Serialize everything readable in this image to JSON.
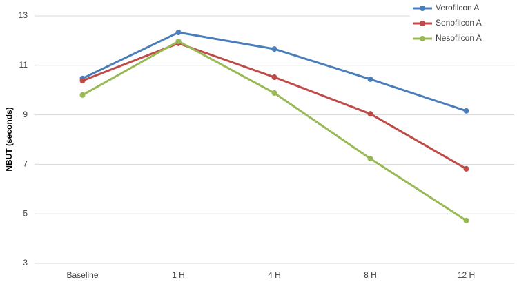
{
  "chart_data": {
    "type": "line",
    "y_label": "NBUT (seconds)",
    "categories": [
      "Baseline",
      "1 H",
      "4 H",
      "8 H",
      "12 H"
    ],
    "series": [
      {
        "name": "Verofilcon A",
        "color": "#4a7ebb",
        "values": [
          10.47,
          12.33,
          11.66,
          10.44,
          9.16
        ]
      },
      {
        "name": "Senofilcon A",
        "color": "#be4b48",
        "values": [
          10.38,
          11.89,
          10.52,
          9.04,
          6.82
        ]
      },
      {
        "name": "Nesofilcon A",
        "color": "#98b954",
        "values": [
          9.8,
          11.97,
          9.88,
          7.23,
          4.73
        ]
      }
    ],
    "ylim": [
      3,
      13
    ],
    "yticks": [
      3,
      5,
      7,
      9,
      11,
      13
    ],
    "grid": true,
    "legend": "top-right"
  }
}
